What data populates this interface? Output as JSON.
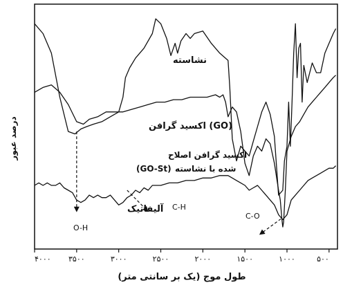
{
  "chart_data": {
    "type": "line",
    "title": "",
    "xlabel": "طول موج (یک بر سانتی متر)",
    "ylabel": "درصد عبور",
    "xlim": [
      4000,
      400
    ],
    "ylim": [
      0,
      100
    ],
    "y_ticks_shown": false,
    "x_ticks": [
      4000,
      3500,
      3000,
      2500,
      2000,
      1500,
      1000,
      500
    ],
    "x_tick_labels": [
      "۴۰۰۰",
      "۳۵۰۰",
      "۳۰۰۰",
      "۲۵۰۰",
      "۲۰۰۰",
      "۱۵۰۰",
      "۱۰۰۰",
      "۵۰۰"
    ],
    "series": [
      {
        "name": "نشاسته",
        "color": "#111111",
        "x": [
          4000,
          3900,
          3800,
          3700,
          3600,
          3520,
          3450,
          3380,
          3300,
          3200,
          3100,
          3000,
          2950,
          2920,
          2870,
          2800,
          2700,
          2600,
          2560,
          2500,
          2430,
          2380,
          2330,
          2300,
          2260,
          2200,
          2150,
          2100,
          2000,
          1900,
          1800,
          1700,
          1680,
          1650,
          1600,
          1550,
          1500,
          1450,
          1400,
          1350,
          1300,
          1250,
          1200,
          1150,
          1100,
          1050,
          1030,
          1000,
          980,
          960,
          940,
          920,
          900,
          880,
          860,
          840,
          820,
          800,
          760,
          700,
          650,
          600,
          550,
          500,
          450,
          420
        ],
        "y": [
          92,
          88,
          80,
          62,
          48,
          47,
          49,
          50,
          51,
          52,
          54,
          56,
          62,
          70,
          74,
          78,
          82,
          88,
          94,
          92,
          86,
          79,
          84,
          80,
          85,
          88,
          86,
          88,
          89,
          84,
          80,
          77,
          66,
          45,
          36,
          42,
          40,
          38,
          44,
          50,
          56,
          60,
          55,
          46,
          22,
          24,
          36,
          42,
          60,
          42,
          60,
          80,
          92,
          70,
          82,
          84,
          60,
          75,
          68,
          76,
          72,
          72,
          80,
          84,
          88,
          90
        ]
      },
      {
        "name": "اکسید گرافن (GO)",
        "color": "#111111",
        "x": [
          4000,
          3900,
          3800,
          3700,
          3600,
          3500,
          3420,
          3350,
          3250,
          3150,
          3050,
          2950,
          2850,
          2750,
          2650,
          2550,
          2450,
          2350,
          2250,
          2150,
          2050,
          1950,
          1850,
          1800,
          1760,
          1730,
          1700,
          1650,
          1600,
          1550,
          1500,
          1450,
          1400,
          1350,
          1300,
          1250,
          1200,
          1150,
          1100,
          1080,
          1060,
          1050,
          1040,
          1020,
          1000,
          950,
          900,
          850,
          800,
          750,
          700,
          650,
          600,
          550,
          500,
          450,
          420
        ],
        "y": [
          64,
          66,
          67,
          64,
          59,
          52,
          51,
          53,
          54,
          56,
          56,
          56,
          57,
          58,
          59,
          60,
          60,
          61,
          61,
          62,
          62,
          62,
          63,
          62,
          63,
          60,
          54,
          58,
          56,
          48,
          35,
          30,
          38,
          42,
          40,
          45,
          43,
          35,
          24,
          20,
          12,
          9,
          11,
          24,
          40,
          46,
          50,
          52,
          55,
          58,
          60,
          62,
          64,
          66,
          68,
          70,
          71
        ]
      },
      {
        "name": "اکسید گرافن اصلاح شده با نشاسته (GO-St)",
        "color": "#111111",
        "x": [
          4000,
          3950,
          3900,
          3850,
          3800,
          3750,
          3700,
          3650,
          3600,
          3550,
          3500,
          3450,
          3400,
          3350,
          3300,
          3250,
          3200,
          3150,
          3100,
          3050,
          3000,
          2950,
          2900,
          2850,
          2800,
          2750,
          2700,
          2650,
          2600,
          2500,
          2400,
          2300,
          2200,
          2100,
          2000,
          1900,
          1800,
          1700,
          1650,
          1600,
          1550,
          1500,
          1450,
          1400,
          1350,
          1300,
          1250,
          1200,
          1150,
          1100,
          1050,
          1000,
          950,
          900,
          850,
          800,
          750,
          700,
          650,
          600,
          550,
          500,
          450,
          420
        ],
        "y": [
          26,
          27,
          26,
          27,
          26,
          26,
          27,
          25,
          24,
          23,
          20,
          19,
          20,
          22,
          21,
          22,
          21,
          21,
          22,
          20,
          18,
          19,
          21,
          22,
          24,
          23,
          25,
          24,
          26,
          26,
          27,
          27,
          28,
          28,
          29,
          29,
          30,
          30,
          29,
          28,
          27,
          26,
          24,
          25,
          26,
          24,
          22,
          20,
          18,
          14,
          12,
          14,
          20,
          22,
          24,
          26,
          28,
          29,
          30,
          31,
          32,
          33,
          33,
          34
        ]
      }
    ],
    "annotations": [
      {
        "text": "نشاسته",
        "bold": true
      },
      {
        "text": "اکسید گرافن (GO)",
        "bold": true
      },
      {
        "text": "اکسید گرافن اصلاح",
        "bold": true
      },
      {
        "text": "شده با نشاسته",
        "bold": true
      },
      {
        "text": "(GO-St)",
        "bold": true
      },
      {
        "text": "O-H",
        "bold": false,
        "arrow_x": 3500
      },
      {
        "text": "C-H",
        "bold": false,
        "arrow_x": 2900
      },
      {
        "text": "آلیفاتیک",
        "bold": true
      },
      {
        "text": "C-O",
        "bold": false,
        "arrow_x": 1040
      }
    ]
  }
}
